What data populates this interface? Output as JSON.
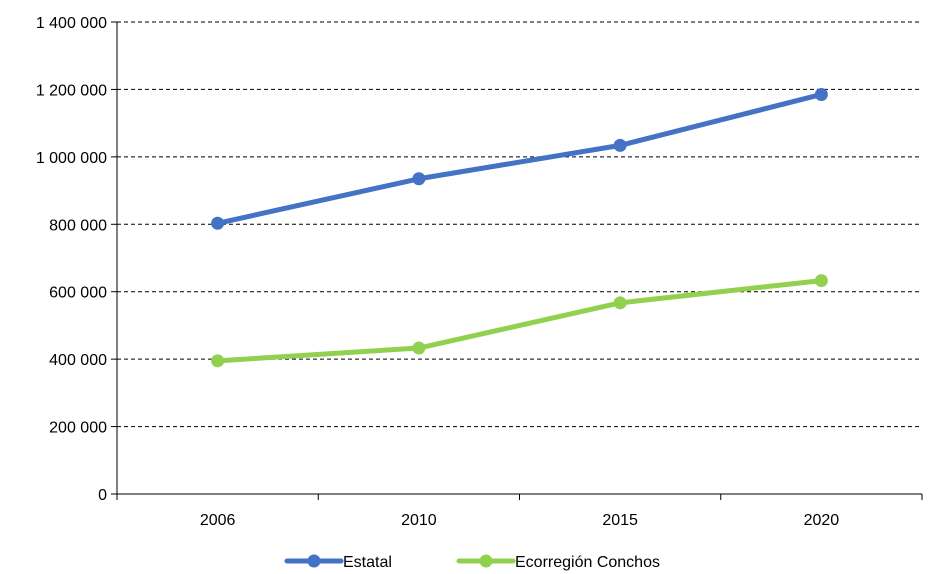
{
  "chart_data": {
    "type": "line",
    "categories": [
      "2006",
      "2010",
      "2015",
      "2020"
    ],
    "series": [
      {
        "name": "Estatal",
        "color": "#4472C4",
        "values": [
          803000,
          935000,
          1034000,
          1185000
        ]
      },
      {
        "name": "Ecorregión Conchos",
        "color": "#92D050",
        "values": [
          395000,
          433000,
          567000,
          633000
        ]
      }
    ],
    "y_ticks": [
      {
        "value": 0,
        "label": "0"
      },
      {
        "value": 200000,
        "label": "200 000"
      },
      {
        "value": 400000,
        "label": "400 000"
      },
      {
        "value": 600000,
        "label": "600 000"
      },
      {
        "value": 800000,
        "label": "800 000"
      },
      {
        "value": 1000000,
        "label": "1 000 000"
      },
      {
        "value": 1200000,
        "label": "1 200 000"
      },
      {
        "value": 1400000,
        "label": "1 400 000"
      }
    ],
    "ylim": [
      0,
      1400000
    ],
    "grid": true,
    "grid_style": "dashed",
    "legend_position": "bottom"
  }
}
